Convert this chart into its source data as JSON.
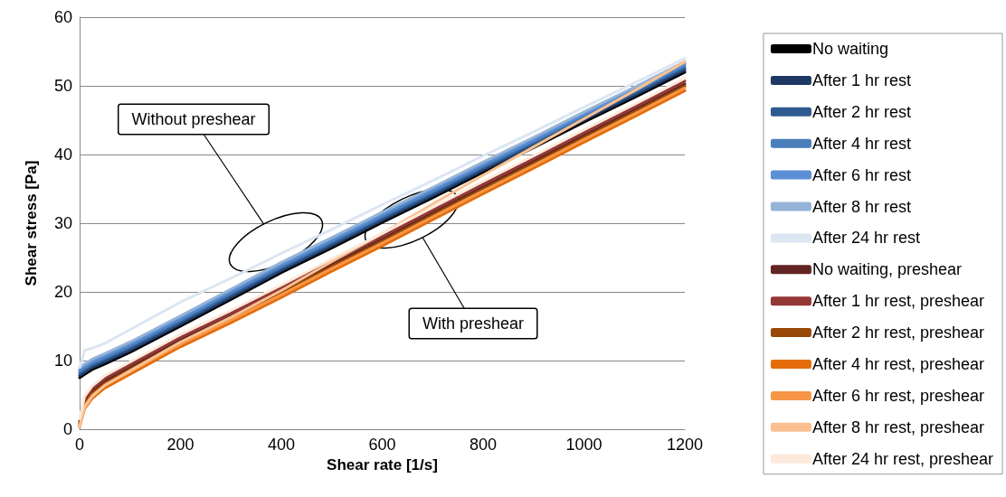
{
  "chart_data": {
    "type": "line",
    "xlabel": "Shear rate [1/s]",
    "ylabel": "Shear stress [Pa]",
    "x": [
      0,
      10,
      25,
      50,
      100,
      200,
      300,
      400,
      500,
      600,
      700,
      800,
      900,
      1000,
      1100,
      1200
    ],
    "xlim": [
      0,
      1200
    ],
    "xticks": [
      0,
      200,
      400,
      600,
      800,
      1000,
      1200
    ],
    "ylim": [
      0,
      60
    ],
    "yticks": [
      0,
      10,
      20,
      30,
      40,
      50,
      60
    ],
    "grid": "y",
    "legend": "right",
    "marker": "none",
    "line_style": "solid",
    "annotations": [
      "Without preshear",
      "With preshear"
    ],
    "series": [
      {
        "name": "No waiting",
        "color": "#000000",
        "values": [
          7.5,
          8.0,
          8.7,
          9.5,
          11.2,
          15.0,
          18.9,
          22.8,
          26.4,
          30.1,
          33.7,
          37.4,
          41.0,
          44.7,
          48.3,
          52.0
        ]
      },
      {
        "name": "After 1 hr rest",
        "color": "#1f3864",
        "values": [
          7.8,
          8.3,
          9.0,
          9.8,
          11.5,
          15.3,
          19.2,
          23.1,
          26.7,
          30.4,
          34.0,
          37.7,
          41.3,
          45.0,
          48.6,
          52.3
        ]
      },
      {
        "name": "After 2 hr rest",
        "color": "#2e5a8f",
        "values": [
          8.1,
          8.6,
          9.3,
          10.1,
          11.8,
          15.6,
          19.5,
          23.4,
          27.0,
          30.7,
          34.3,
          38.0,
          41.6,
          45.3,
          48.9,
          52.6
        ]
      },
      {
        "name": "After 4 hr rest",
        "color": "#4a7ebb",
        "values": [
          8.4,
          8.9,
          9.6,
          10.4,
          12.1,
          15.9,
          19.8,
          23.7,
          27.3,
          31.0,
          34.6,
          38.3,
          41.9,
          45.6,
          49.2,
          52.9
        ]
      },
      {
        "name": "After 6 hr rest",
        "color": "#5b8fd6",
        "values": [
          8.7,
          9.2,
          9.9,
          10.7,
          12.4,
          16.2,
          20.1,
          24.0,
          27.6,
          31.3,
          34.9,
          38.6,
          42.2,
          45.9,
          49.5,
          53.2
        ]
      },
      {
        "name": "After 8 hr rest",
        "color": "#95b3d7",
        "values": [
          9.0,
          9.5,
          10.2,
          11.0,
          12.7,
          16.5,
          20.4,
          24.3,
          27.9,
          31.6,
          35.2,
          38.9,
          42.5,
          46.2,
          49.8,
          53.5
        ]
      },
      {
        "name": "After 24 hr rest",
        "color": "#dce6f2",
        "values": [
          9.0,
          11.5,
          11.8,
          12.5,
          14.5,
          18.5,
          22.0,
          25.6,
          29.1,
          32.7,
          36.2,
          39.8,
          43.3,
          46.9,
          50.4,
          54.0
        ]
      },
      {
        "name": "No waiting, preshear",
        "color": "#632523",
        "values": [
          0.9,
          4.0,
          5.5,
          7.0,
          9.0,
          13.0,
          16.5,
          20.2,
          24.0,
          27.7,
          31.5,
          35.3,
          39.0,
          42.8,
          46.5,
          50.3
        ]
      },
      {
        "name": "After 1 hr rest, preshear",
        "color": "#953735",
        "values": [
          1.2,
          4.4,
          5.9,
          7.4,
          9.4,
          13.4,
          16.9,
          20.6,
          24.4,
          28.1,
          31.9,
          35.7,
          39.4,
          43.2,
          46.9,
          50.7
        ]
      },
      {
        "name": "After 2 hr rest, preshear",
        "color": "#984807",
        "values": [
          0.6,
          3.7,
          5.2,
          6.7,
          8.7,
          12.7,
          16.2,
          19.9,
          23.7,
          27.4,
          31.2,
          35.0,
          38.7,
          42.5,
          46.2,
          50.0
        ]
      },
      {
        "name": "After 4 hr rest, preshear",
        "color": "#e46c0a",
        "values": [
          0.3,
          3.0,
          4.5,
          6.0,
          8.0,
          12.0,
          15.5,
          19.2,
          23.0,
          26.7,
          30.5,
          34.3,
          38.0,
          41.8,
          45.5,
          49.3
        ]
      },
      {
        "name": "After 6 hr rest, preshear",
        "color": "#f79646",
        "values": [
          0.4,
          3.4,
          4.9,
          6.4,
          8.4,
          12.4,
          15.9,
          19.6,
          23.4,
          27.1,
          30.9,
          34.7,
          38.4,
          42.2,
          45.9,
          49.7
        ]
      },
      {
        "name": "After 8 hr rest, preshear",
        "color": "#fac090",
        "values": [
          0.3,
          3.2,
          4.8,
          6.4,
          8.5,
          12.7,
          16.3,
          20.2,
          24.4,
          28.5,
          32.8,
          37.0,
          41.1,
          45.2,
          49.3,
          53.5
        ]
      },
      {
        "name": "After 24 hr rest, preshear",
        "color": "#fde9d9",
        "values": [
          1.5,
          4.8,
          6.3,
          7.8,
          9.8,
          13.8,
          17.3,
          21.0,
          24.8,
          28.5,
          32.3,
          36.1,
          39.8,
          43.6,
          47.3,
          51.1
        ]
      }
    ]
  }
}
